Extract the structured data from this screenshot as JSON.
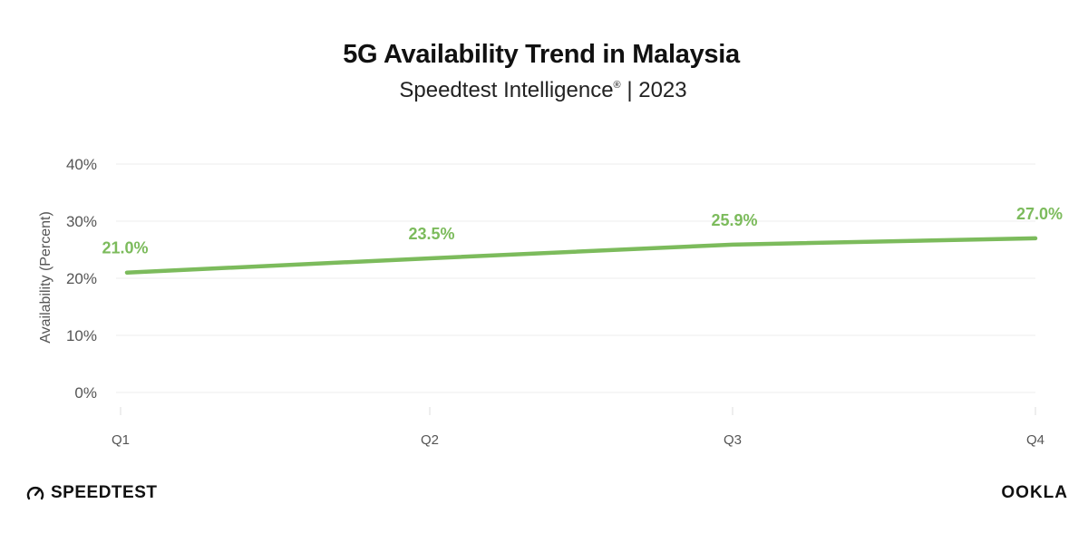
{
  "title": "5G Availability Trend in Malaysia",
  "subtitle_main": "Speedtest Intelligence",
  "subtitle_mark": "®",
  "subtitle_rest": " | 2023",
  "branding": {
    "left_label": "SPEEDTEST",
    "left_icon": "speedometer-icon",
    "right_label": "OOKLA"
  },
  "chart_data": {
    "type": "line",
    "categories": [
      "Q1",
      "Q2",
      "Q3",
      "Q4"
    ],
    "series": [
      {
        "values": [
          21.0,
          23.5,
          25.9,
          27.0
        ],
        "color": "#7cbb5c"
      }
    ],
    "data_labels": [
      "21.0%",
      "23.5%",
      "25.9%",
      "27.0%"
    ],
    "ylabel": "Availability (Percent)",
    "yticks": [
      0,
      10,
      20,
      30,
      40
    ],
    "ytick_labels": [
      "0%",
      "10%",
      "20%",
      "30%",
      "40%"
    ],
    "ylim": [
      0,
      40
    ],
    "grid": true
  }
}
